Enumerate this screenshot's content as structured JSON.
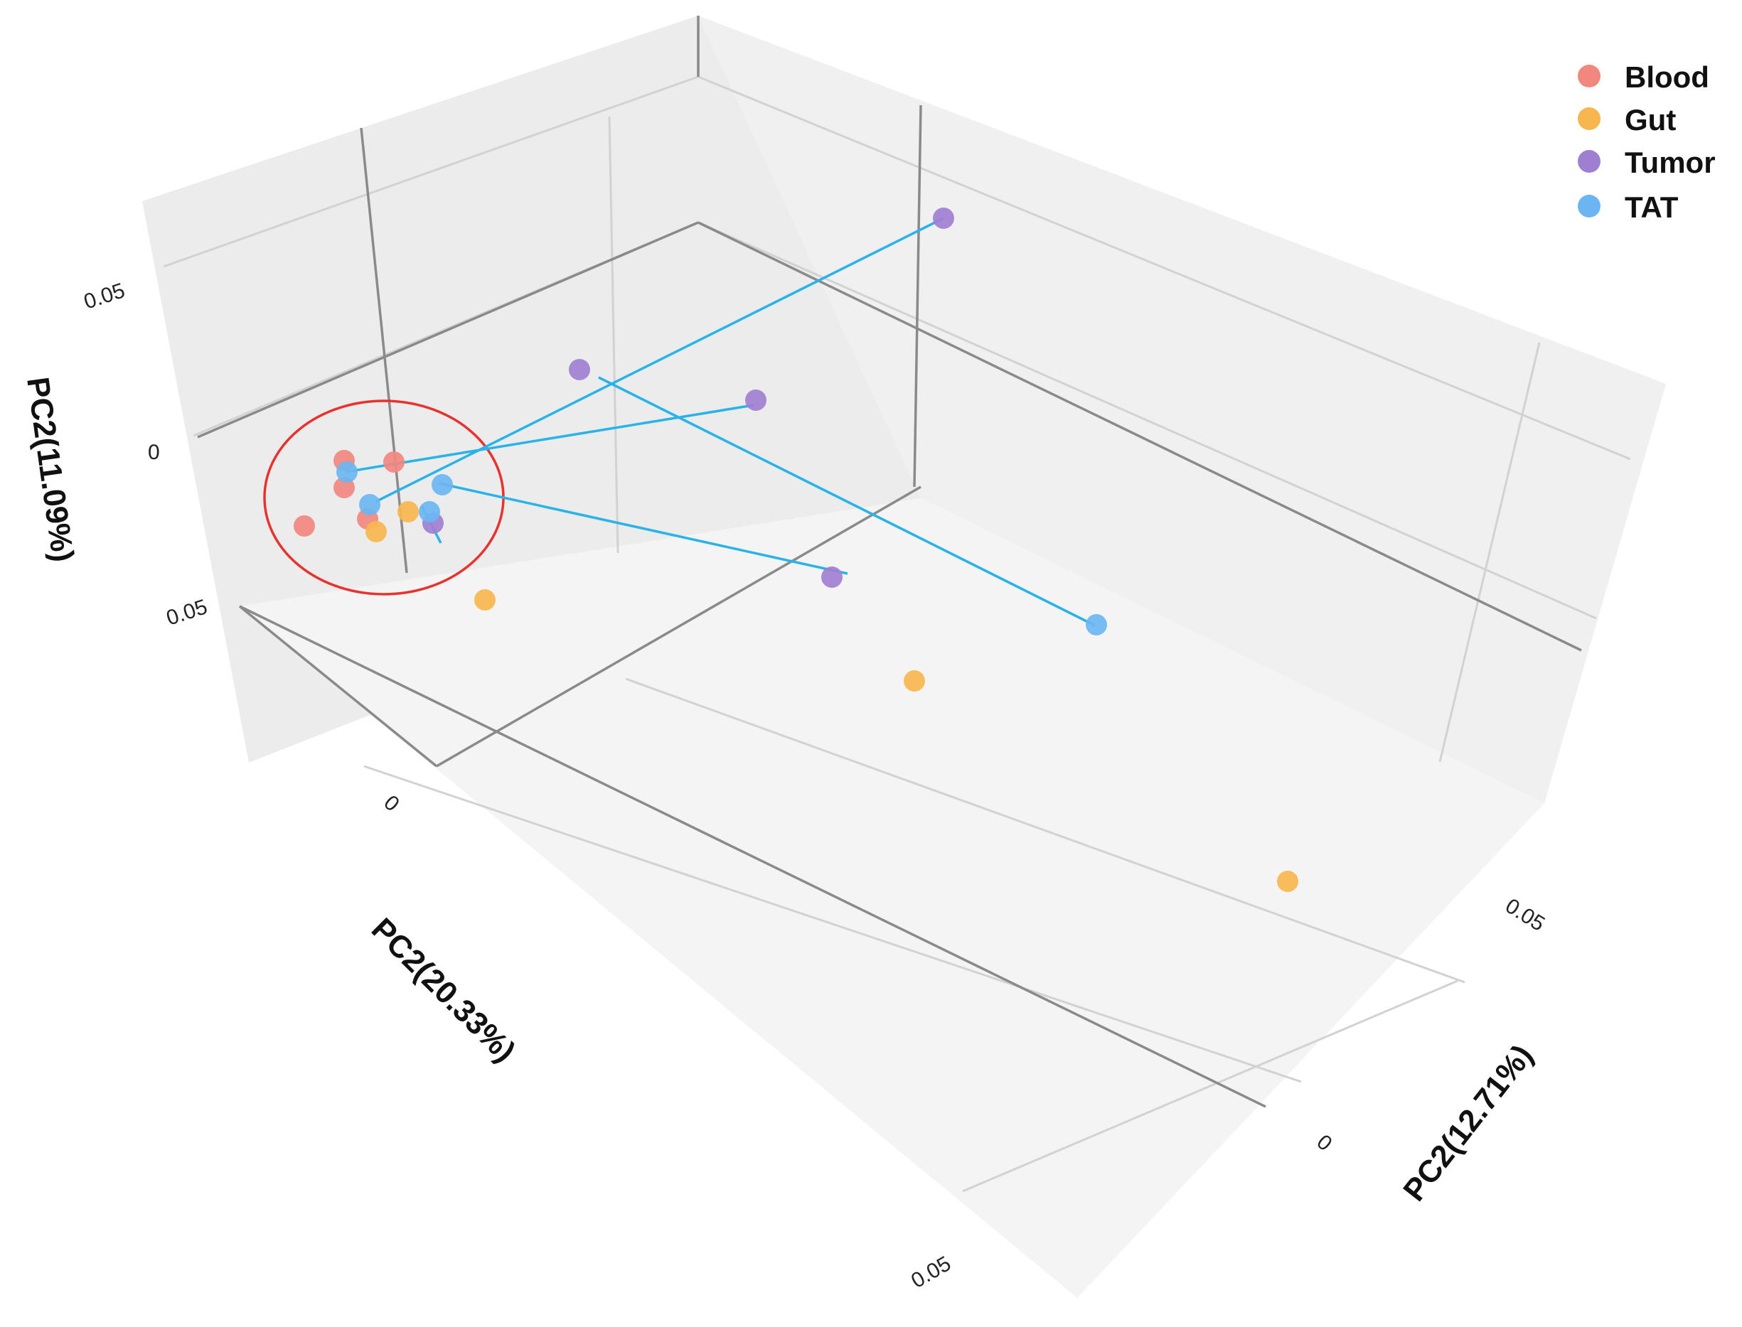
{
  "chart_data": {
    "type": "scatter",
    "projection": "3d",
    "title": "",
    "axes": {
      "x": {
        "label": "PC2(20.33%)",
        "ticks": [
          "0",
          "0.05"
        ]
      },
      "y": {
        "label": "PC2(12.71%)",
        "ticks": [
          "0",
          "0.05"
        ]
      },
      "z": {
        "label": "PC2(11.09%)",
        "ticks": [
          "0",
          "0.05",
          "0.05"
        ]
      }
    },
    "grid": true,
    "legend": {
      "position": "top-right",
      "entries": [
        {
          "name": "Blood",
          "color": "#f1877f"
        },
        {
          "name": "Gut",
          "color": "#f8b64e"
        },
        {
          "name": "Tumor",
          "color": "#9f7fd2"
        },
        {
          "name": "TAT",
          "color": "#6bb6f2"
        }
      ]
    },
    "series": [
      {
        "name": "Blood",
        "color": "#f1877f",
        "points": [
          [
            484,
            648
          ],
          [
            554,
            650
          ],
          [
            484,
            686
          ],
          [
            428,
            740
          ],
          [
            517,
            730
          ]
        ]
      },
      {
        "name": "Gut",
        "color": "#f8b64e",
        "points": [
          [
            574,
            720
          ],
          [
            529,
            748
          ],
          [
            682,
            844
          ],
          [
            1286,
            958
          ],
          [
            1811,
            1240
          ]
        ]
      },
      {
        "name": "Tumor",
        "color": "#9f7fd2",
        "points": [
          [
            1327,
            307
          ],
          [
            815,
            520
          ],
          [
            1063,
            563
          ],
          [
            1170,
            812
          ],
          [
            609,
            736
          ]
        ]
      },
      {
        "name": "TAT",
        "color": "#6bb6f2",
        "points": [
          [
            488,
            664
          ],
          [
            520,
            710
          ],
          [
            604,
            720
          ],
          [
            622,
            682
          ],
          [
            1542,
            879
          ]
        ]
      }
    ],
    "connectors": [
      {
        "color": "#29b3e8",
        "from": [
          1327,
          307
        ],
        "to": [
          528,
          706
        ]
      },
      {
        "color": "#29b3e8",
        "from": [
          1060,
          570
        ],
        "to": [
          486,
          664
        ]
      },
      {
        "color": "#29b3e8",
        "from": [
          842,
          531
        ],
        "to": [
          1540,
          880
        ]
      },
      {
        "color": "#29b3e8",
        "from": [
          617,
          680
        ],
        "to": [
          1192,
          807
        ]
      },
      {
        "color": "#29b3e8",
        "from": [
          593,
          712
        ],
        "to": [
          620,
          764
        ]
      }
    ],
    "highlight": {
      "shape": "ellipse",
      "color": "#e8322e"
    }
  }
}
